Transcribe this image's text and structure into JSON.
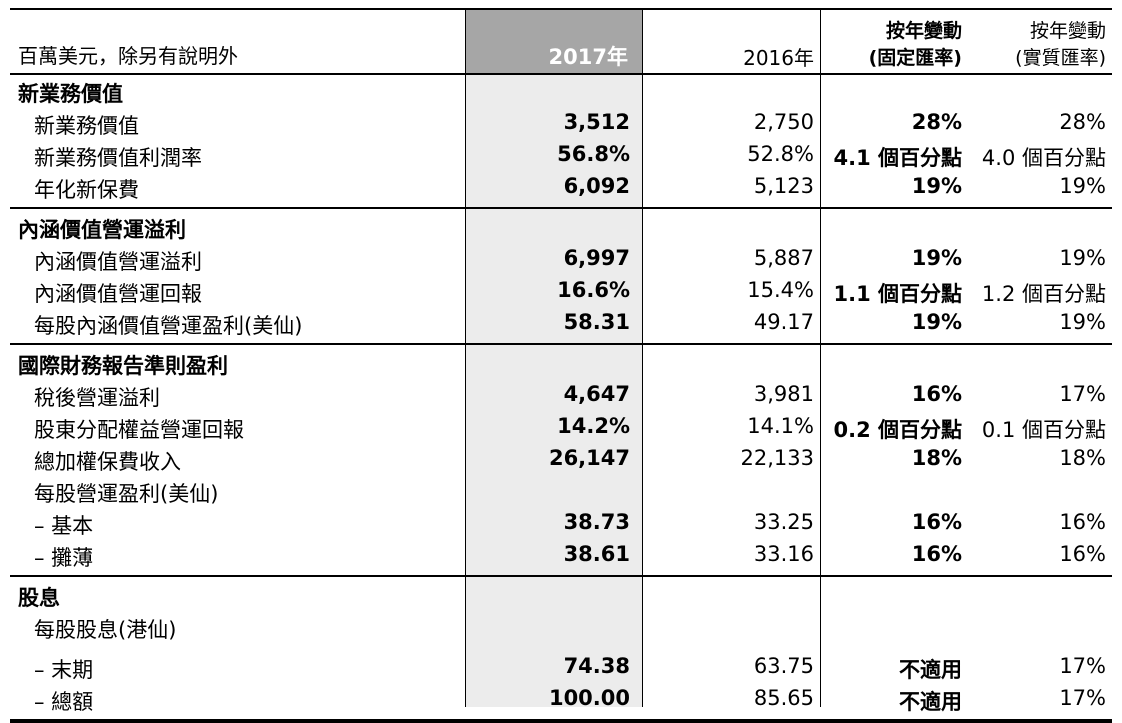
{
  "header": {
    "unit": "百萬美元，除另有說明外",
    "col_2017": "2017年",
    "col_2016": "2016年",
    "col_chg_const_l1": "按年變動",
    "col_chg_const_l2": "(固定匯率)",
    "col_chg_actual_l1": "按年變動",
    "col_chg_actual_l2": "(實質匯率)"
  },
  "sections": [
    {
      "title": "新業務價值",
      "rows": [
        {
          "label": "新業務價值",
          "v2017": "3,512",
          "v2016": "2,750",
          "chg_const": "28%",
          "chg_actual": "28%"
        },
        {
          "label": "新業務價值利潤率",
          "v2017": "56.8%",
          "v2016": "52.8%",
          "chg_const": "4.1 個百分點",
          "chg_actual": "4.0 個百分點"
        },
        {
          "label": "年化新保費",
          "v2017": "6,092",
          "v2016": "5,123",
          "chg_const": "19%",
          "chg_actual": "19%"
        }
      ]
    },
    {
      "title": "內涵價值營運溢利",
      "rows": [
        {
          "label": "內涵價值營運溢利",
          "v2017": "6,997",
          "v2016": "5,887",
          "chg_const": "19%",
          "chg_actual": "19%"
        },
        {
          "label": "內涵價值營運回報",
          "v2017": "16.6%",
          "v2016": "15.4%",
          "chg_const": "1.1 個百分點",
          "chg_actual": "1.2 個百分點"
        },
        {
          "label": "每股內涵價值營運盈利(美仙)",
          "v2017": "58.31",
          "v2016": "49.17",
          "chg_const": "19%",
          "chg_actual": "19%"
        }
      ]
    },
    {
      "title": "國際財務報告準則盈利",
      "rows": [
        {
          "label": "稅後營運溢利",
          "v2017": "4,647",
          "v2016": "3,981",
          "chg_const": "16%",
          "chg_actual": "17%"
        },
        {
          "label": "股東分配權益營運回報",
          "v2017": "14.2%",
          "v2016": "14.1%",
          "chg_const": "0.2 個百分點",
          "chg_actual": "0.1 個百分點"
        },
        {
          "label": "總加權保費收入",
          "v2017": "26,147",
          "v2016": "22,133",
          "chg_const": "18%",
          "chg_actual": "18%"
        },
        {
          "label": "每股營運盈利(美仙)",
          "v2017": "",
          "v2016": "",
          "chg_const": "",
          "chg_actual": ""
        },
        {
          "label": "– 基本",
          "v2017": "38.73",
          "v2016": "33.25",
          "chg_const": "16%",
          "chg_actual": "16%"
        },
        {
          "label": "– 攤薄",
          "v2017": "38.61",
          "v2016": "33.16",
          "chg_const": "16%",
          "chg_actual": "16%"
        }
      ]
    },
    {
      "title": "股息",
      "rows": [
        {
          "label": "每股股息(港仙)",
          "v2017": "",
          "v2016": "",
          "chg_const": "",
          "chg_actual": ""
        },
        {
          "label": "– 末期",
          "v2017": "74.38",
          "v2016": "63.75",
          "chg_const": "不適用",
          "chg_actual": "17%"
        },
        {
          "label": "– 總額",
          "v2017": "100.00",
          "v2016": "85.65",
          "chg_const": "不適用",
          "chg_actual": "17%"
        }
      ]
    }
  ]
}
